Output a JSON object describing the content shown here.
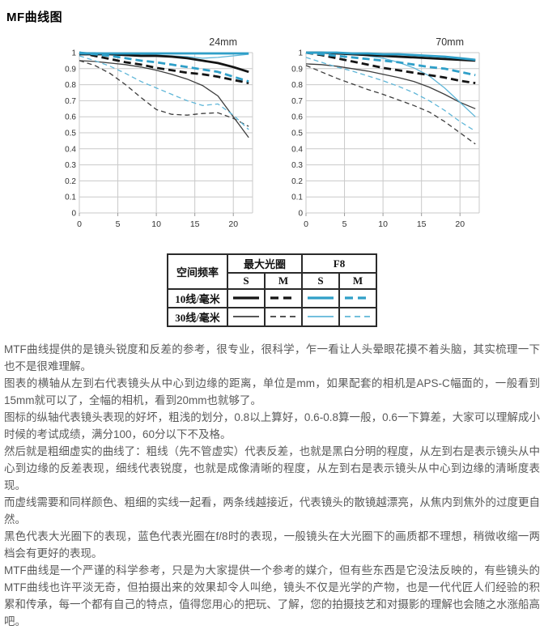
{
  "page": {
    "title": "MF曲线图"
  },
  "colors": {
    "black_thick": "#141414",
    "black_thin": "#3d3d3d",
    "blue_thick": "#2f9fc8",
    "blue_thin": "#5fb6d8",
    "grid": "#c9c9c9",
    "axis_text": "#333333",
    "body_text": "#595959"
  },
  "chart_data": [
    {
      "type": "line",
      "title": "24mm",
      "xlabel": "",
      "ylabel": "",
      "xlim": [
        0,
        22.5
      ],
      "ylim": [
        0,
        1
      ],
      "xticks": [
        0,
        5,
        10,
        15,
        20
      ],
      "ytick_labels": [
        "1",
        "0.9",
        "0.8",
        "0.7",
        "0.6",
        "0.5",
        "0.4",
        "0.3",
        "0.2",
        "0.1",
        "0"
      ],
      "grid": true,
      "x": [
        0,
        2,
        4,
        6,
        8,
        10,
        12,
        14,
        16,
        18,
        20,
        22
      ],
      "series": [
        {
          "name": "10线/毫米 最大光圈 S",
          "color": "black",
          "weight": "thick",
          "dash": false,
          "values": [
            0.99,
            0.99,
            0.99,
            0.985,
            0.98,
            0.98,
            0.975,
            0.965,
            0.95,
            0.935,
            0.91,
            0.88
          ]
        },
        {
          "name": "10线/毫米 最大光圈 M",
          "color": "black",
          "weight": "thick",
          "dash": true,
          "values": [
            1.0,
            0.98,
            0.96,
            0.94,
            0.925,
            0.905,
            0.89,
            0.875,
            0.865,
            0.85,
            0.83,
            0.81
          ]
        },
        {
          "name": "10线/毫米 F8 S",
          "color": "blue",
          "weight": "thick",
          "dash": false,
          "values": [
            0.995,
            0.995,
            0.995,
            0.995,
            0.995,
            0.995,
            0.995,
            0.995,
            0.995,
            0.995,
            0.995,
            0.995
          ]
        },
        {
          "name": "10线/毫米 F8 M",
          "color": "blue",
          "weight": "thick",
          "dash": true,
          "values": [
            1.0,
            0.99,
            0.98,
            0.965,
            0.95,
            0.94,
            0.925,
            0.91,
            0.895,
            0.88,
            0.85,
            0.82
          ]
        },
        {
          "name": "30线/毫米 最大光圈 S",
          "color": "black",
          "weight": "thin",
          "dash": false,
          "values": [
            0.95,
            0.945,
            0.935,
            0.925,
            0.91,
            0.89,
            0.865,
            0.835,
            0.795,
            0.73,
            0.6,
            0.47
          ]
        },
        {
          "name": "30线/毫米 最大光圈 M",
          "color": "black",
          "weight": "thin",
          "dash": true,
          "values": [
            0.95,
            0.92,
            0.87,
            0.8,
            0.72,
            0.645,
            0.615,
            0.61,
            0.62,
            0.625,
            0.59,
            0.54
          ]
        },
        {
          "name": "30线/毫米 F8 S",
          "color": "blue",
          "weight": "thin",
          "dash": false,
          "values": [
            1.0,
            1.0,
            0.995,
            0.99,
            0.99,
            0.985,
            0.98,
            0.975,
            0.965,
            0.97,
            0.98,
            0.99
          ]
        },
        {
          "name": "30线/毫米 F8 M",
          "color": "blue",
          "weight": "thin",
          "dash": true,
          "values": [
            0.98,
            0.95,
            0.915,
            0.87,
            0.82,
            0.78,
            0.74,
            0.7,
            0.67,
            0.68,
            0.61,
            0.52
          ]
        }
      ]
    },
    {
      "type": "line",
      "title": "70mm",
      "xlabel": "",
      "ylabel": "",
      "xlim": [
        0,
        22.5
      ],
      "ylim": [
        0,
        1
      ],
      "xticks": [
        0,
        5,
        10,
        15,
        20
      ],
      "ytick_labels": [
        "1",
        "0.9",
        "0.8",
        "0.7",
        "0.6",
        "0.5",
        "0.4",
        "0.3",
        "0.2",
        "0.1",
        "0"
      ],
      "grid": true,
      "x": [
        0,
        2,
        4,
        6,
        8,
        10,
        12,
        14,
        16,
        18,
        20,
        22
      ],
      "series": [
        {
          "name": "10线/毫米 最大光圈 S",
          "color": "black",
          "weight": "thick",
          "dash": false,
          "values": [
            1.0,
            1.0,
            0.995,
            0.99,
            0.985,
            0.98,
            0.975,
            0.97,
            0.965,
            0.96,
            0.955,
            0.95
          ]
        },
        {
          "name": "10线/毫米 最大光圈 M",
          "color": "black",
          "weight": "thick",
          "dash": true,
          "values": [
            1.0,
            0.985,
            0.965,
            0.945,
            0.925,
            0.905,
            0.89,
            0.875,
            0.86,
            0.845,
            0.825,
            0.81
          ]
        },
        {
          "name": "10线/毫米 F8 S",
          "color": "blue",
          "weight": "thick",
          "dash": false,
          "values": [
            1.0,
            1.0,
            1.0,
            0.995,
            0.995,
            0.99,
            0.99,
            0.985,
            0.98,
            0.975,
            0.965,
            0.955
          ]
        },
        {
          "name": "10线/毫米 F8 M",
          "color": "blue",
          "weight": "thick",
          "dash": true,
          "values": [
            1.0,
            0.99,
            0.98,
            0.97,
            0.96,
            0.95,
            0.94,
            0.925,
            0.91,
            0.9,
            0.88,
            0.86
          ]
        },
        {
          "name": "30线/毫米 最大光圈 S",
          "color": "black",
          "weight": "thin",
          "dash": false,
          "values": [
            0.93,
            0.925,
            0.915,
            0.9,
            0.885,
            0.865,
            0.845,
            0.82,
            0.785,
            0.74,
            0.69,
            0.65
          ]
        },
        {
          "name": "30线/毫米 最大光圈 M",
          "color": "black",
          "weight": "thin",
          "dash": true,
          "values": [
            0.92,
            0.88,
            0.84,
            0.805,
            0.77,
            0.74,
            0.705,
            0.67,
            0.63,
            0.57,
            0.5,
            0.43
          ]
        },
        {
          "name": "30线/毫米 F8 S",
          "color": "blue",
          "weight": "thin",
          "dash": false,
          "values": [
            1.0,
            1.0,
            0.995,
            0.99,
            0.98,
            0.965,
            0.94,
            0.905,
            0.855,
            0.78,
            0.69,
            0.6
          ]
        },
        {
          "name": "30线/毫米 F8 M",
          "color": "blue",
          "weight": "thin",
          "dash": true,
          "values": [
            0.97,
            0.94,
            0.91,
            0.885,
            0.855,
            0.825,
            0.79,
            0.75,
            0.7,
            0.64,
            0.57,
            0.51
          ]
        }
      ]
    }
  ],
  "legend": {
    "header_freq": "空间频率",
    "header_max": "最大光圈",
    "header_f8": "F8",
    "header_s": "S",
    "header_m": "M",
    "rows": [
      {
        "label": "10线/毫米"
      },
      {
        "label": "30线/毫米"
      }
    ]
  },
  "article": {
    "paragraphs": [
      "MTF曲线提供的是镜头锐度和反差的参考，很专业，很科学，乍一看让人头晕眼花摸不着头脑，其实梳理一下也不是很难理解。",
      "图表的横轴从左到右代表镜头从中心到边缘的距离，单位是mm，如果配套的相机是APS-C幅面的，一般看到15mm就可以了，全幅的相机，看到20mm也就够了。",
      "图标的纵轴代表镜头表现的好坏，粗浅的划分，0.8以上算好，0.6-0.8算一般，0.6一下算差，大家可以理解成小时候的考试成绩，满分100，60分以下不及格。",
      "然后就是粗细虚实的曲线了：粗线（先不管虚实）代表反差，也就是黑白分明的程度，从左到右是表示镜头从中心到边缘的反差表现，细线代表锐度，也就是成像清晰的程度，从左到右是表示镜头从中心到边缘的清晰度表现。",
      "而虚线需要和同样颜色、粗细的实线一起看，两条线越接近，代表镜头的散镜越漂亮，从焦内到焦外的过度更自然。",
      "黑色代表大光圈下的表现，蓝色代表光圈在f/8时的表现，一般镜头在大光圈下的画质都不理想，稍微收缩一两档会有更好的表现。",
      "MTF曲线是一个严谨的科学参考，只是为大家提供一个参考的媒介，但有些东西是它没法反映的，有些镜头的MTF曲线也许平淡无奇，但拍摄出来的效果却令人叫绝，镜头不仅是光学的产物，也是一代代匠人们经验的积累和传承，每一个都有自己的特点，值得您用心的把玩、了解，您的拍摄技艺和对摄影的理解也会随之水涨船高吧。"
    ]
  }
}
